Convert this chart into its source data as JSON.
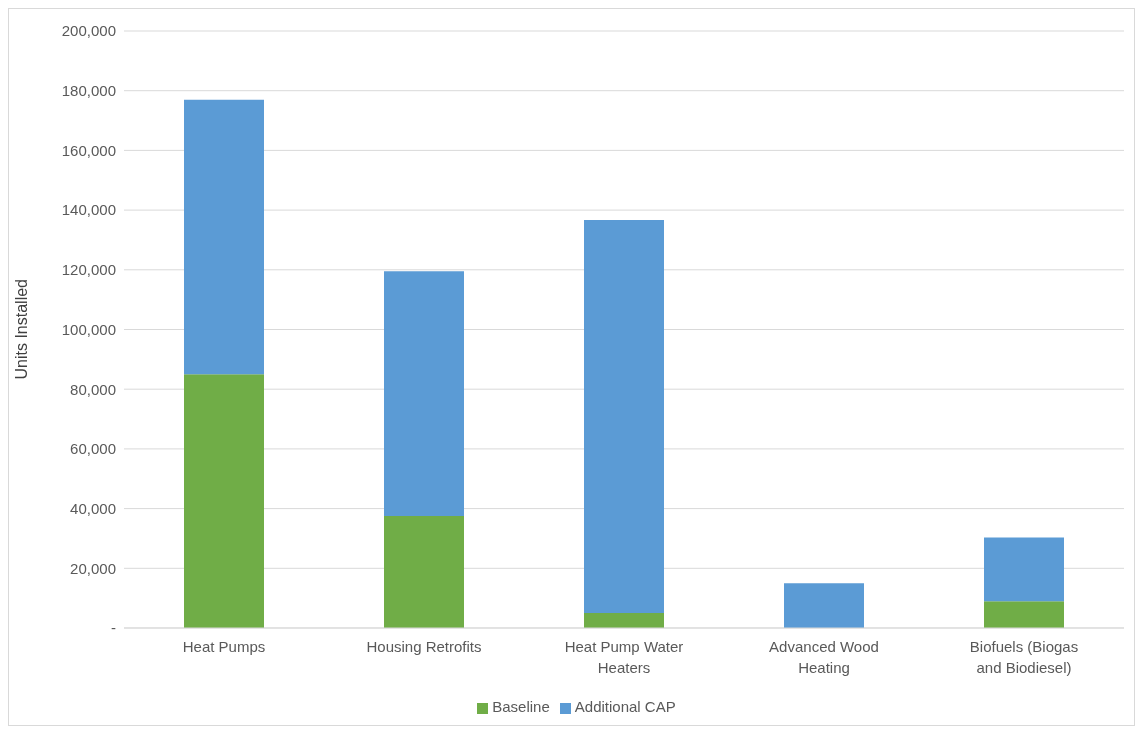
{
  "chart_data": {
    "type": "bar",
    "stacked": true,
    "ylabel": "Units Installed",
    "categories": [
      "Heat Pumps",
      "Housing Retrofits",
      "Heat Pump Water Heaters",
      "Advanced Wood Heating",
      "Biofuels (Biogas and Biodiesel)"
    ],
    "series": [
      {
        "name": "Baseline",
        "color": "#70ad47",
        "values": [
          85000,
          37500,
          5000,
          0,
          9000
        ]
      },
      {
        "name": "Additional CAP",
        "color": "#5b9bd5",
        "values": [
          92000,
          82000,
          131700,
          15000,
          21300
        ]
      }
    ],
    "ylim": [
      0,
      200000
    ],
    "yticks": [
      {
        "value": 0,
        "label": "-"
      },
      {
        "value": 20000,
        "label": "20,000"
      },
      {
        "value": 40000,
        "label": "40,000"
      },
      {
        "value": 60000,
        "label": "60,000"
      },
      {
        "value": 80000,
        "label": "80,000"
      },
      {
        "value": 100000,
        "label": "100,000"
      },
      {
        "value": 120000,
        "label": "120,000"
      },
      {
        "value": 140000,
        "label": "140,000"
      },
      {
        "value": 160000,
        "label": "160,000"
      },
      {
        "value": 180000,
        "label": "180,000"
      },
      {
        "value": 200000,
        "label": "200,000"
      }
    ],
    "grid": "y",
    "legend": "bottom"
  }
}
